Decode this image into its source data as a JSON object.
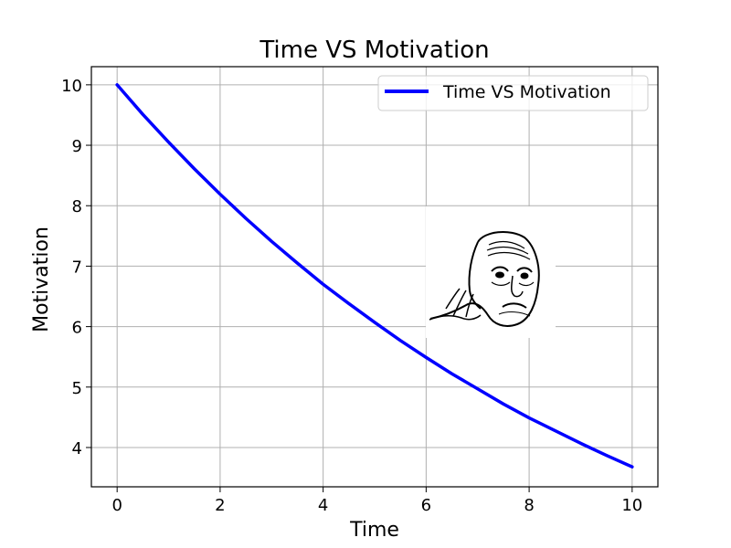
{
  "chart_data": {
    "type": "line",
    "title": "Time VS Motivation",
    "xlabel": "Time",
    "ylabel": "Motivation",
    "xlim": [
      -0.5,
      10.5
    ],
    "ylim": [
      3.35,
      10.3
    ],
    "xticks": [
      0,
      2,
      4,
      6,
      8,
      10
    ],
    "yticks": [
      4,
      5,
      6,
      7,
      8,
      9,
      10
    ],
    "grid": true,
    "legend_position": "top-right",
    "series": [
      {
        "name": "Time VS Motivation",
        "color": "#0000ff",
        "x": [
          0,
          0.5,
          1,
          1.5,
          2,
          2.5,
          3,
          3.5,
          4,
          4.5,
          5,
          5.5,
          6,
          6.5,
          7,
          7.5,
          8,
          8.5,
          9,
          9.5,
          10
        ],
        "y": [
          10.0,
          9.51,
          9.05,
          8.61,
          8.19,
          7.79,
          7.41,
          7.05,
          6.7,
          6.38,
          6.07,
          5.77,
          5.49,
          5.22,
          4.97,
          4.72,
          4.49,
          4.28,
          4.07,
          3.87,
          3.68
        ]
      }
    ],
    "annotations": [
      {
        "type": "image",
        "icon": "tired-face-sketch-icon"
      }
    ]
  }
}
